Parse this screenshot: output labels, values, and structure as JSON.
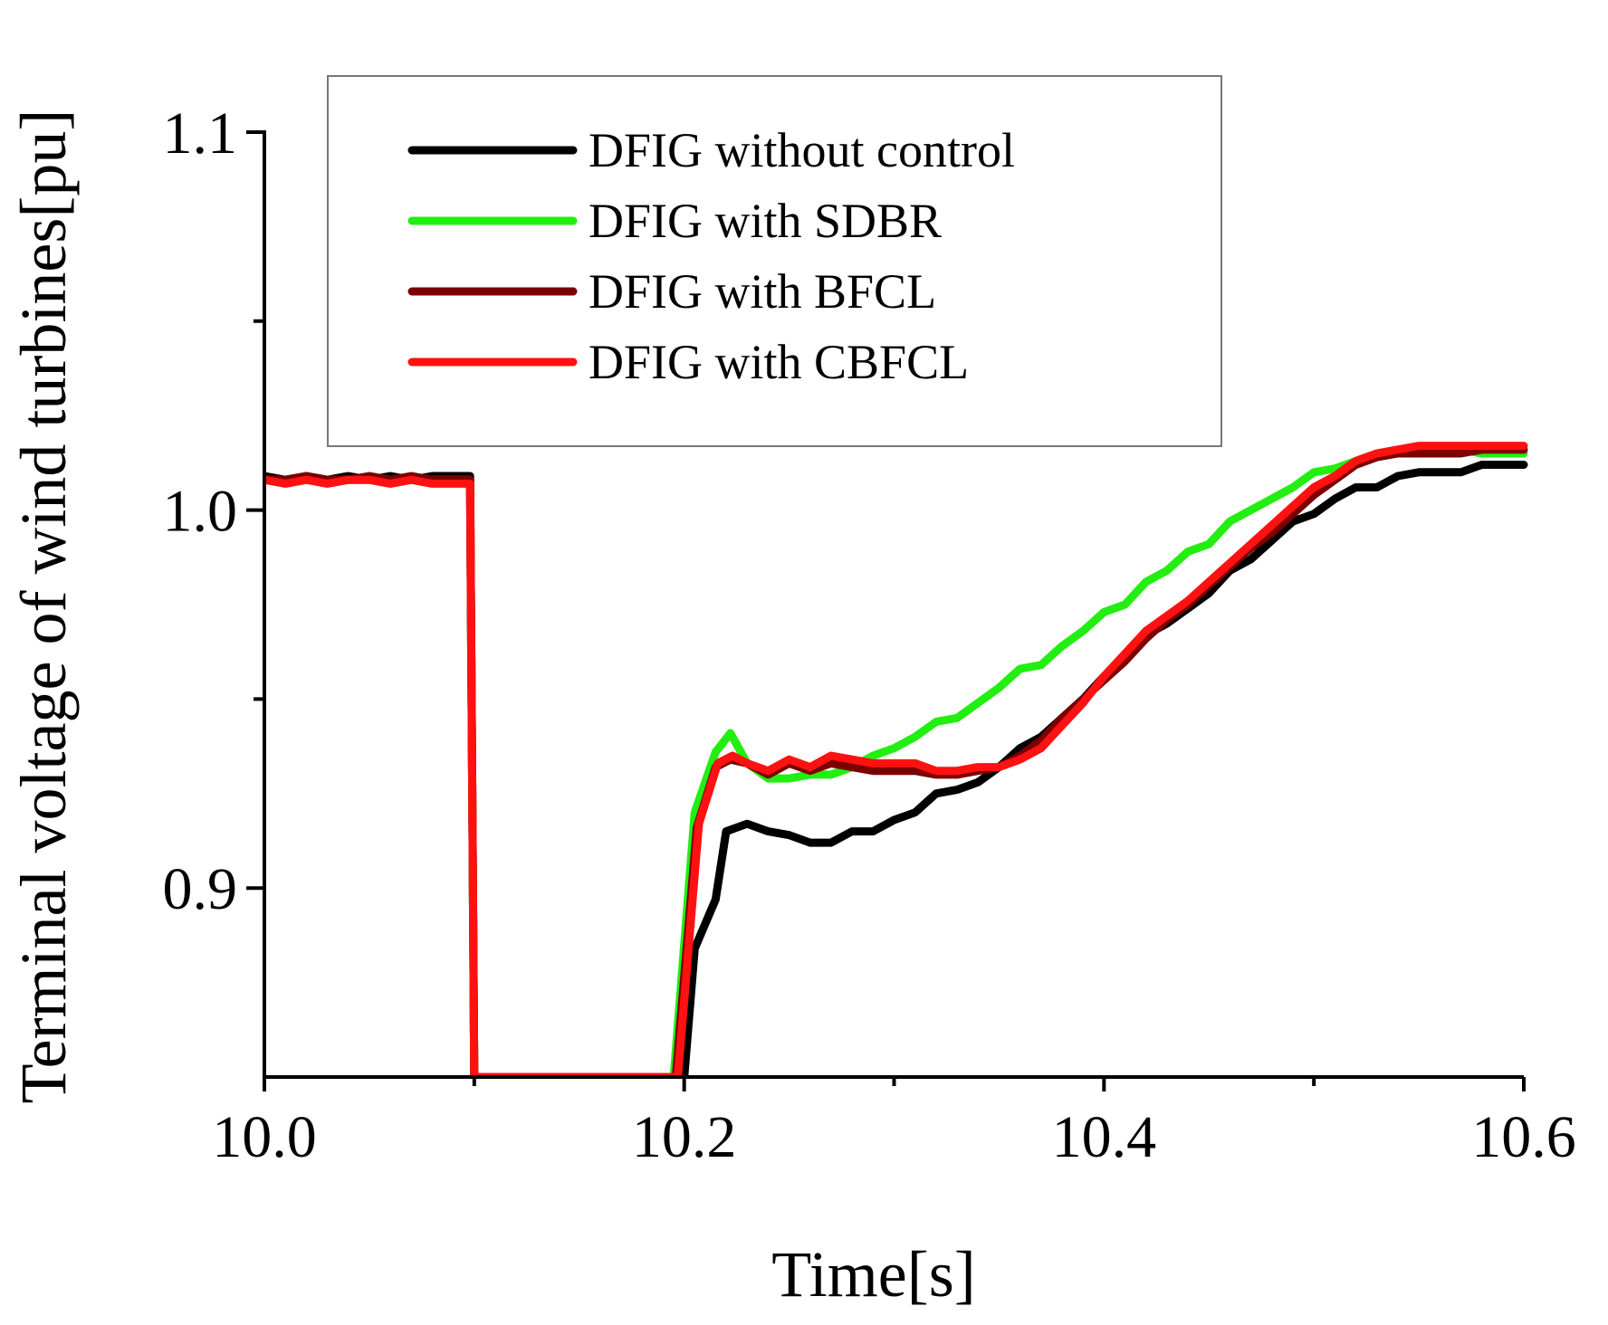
{
  "chart_data": {
    "type": "line",
    "title": "",
    "xlabel": "Time[s]",
    "ylabel": "Terminal voltage of wind turbines[pu]",
    "xlim": [
      10.0,
      10.6
    ],
    "ylim": [
      0.85,
      1.1
    ],
    "x_ticks": [
      {
        "value": 10.0,
        "label": "10.0"
      },
      {
        "value": 10.2,
        "label": "10.2"
      },
      {
        "value": 10.4,
        "label": "10.4"
      },
      {
        "value": 10.6,
        "label": "10.6"
      }
    ],
    "y_ticks": [
      {
        "value": 0.9,
        "label": "0.9"
      },
      {
        "value": 1.0,
        "label": "1.0"
      },
      {
        "value": 1.1,
        "label": "1.1"
      }
    ],
    "x_minor_ticks": [
      10.1,
      10.3,
      10.5
    ],
    "y_minor_ticks": [
      0.95,
      1.05
    ],
    "grid": false,
    "legend_position": "top-center",
    "series": [
      {
        "name": "DFIG without control",
        "color": "#000000",
        "points": [
          [
            10.0,
            1.009
          ],
          [
            10.01,
            1.008
          ],
          [
            10.02,
            1.009
          ],
          [
            10.03,
            1.008
          ],
          [
            10.04,
            1.009
          ],
          [
            10.05,
            1.008
          ],
          [
            10.06,
            1.009
          ],
          [
            10.07,
            1.008
          ],
          [
            10.08,
            1.009
          ],
          [
            10.098,
            1.009
          ],
          [
            10.1,
            0.85
          ],
          [
            10.2,
            0.85
          ],
          [
            10.205,
            0.884
          ],
          [
            10.215,
            0.897
          ],
          [
            10.22,
            0.915
          ],
          [
            10.23,
            0.917
          ],
          [
            10.24,
            0.915
          ],
          [
            10.25,
            0.914
          ],
          [
            10.26,
            0.912
          ],
          [
            10.27,
            0.912
          ],
          [
            10.28,
            0.915
          ],
          [
            10.29,
            0.915
          ],
          [
            10.3,
            0.918
          ],
          [
            10.31,
            0.92
          ],
          [
            10.32,
            0.925
          ],
          [
            10.33,
            0.926
          ],
          [
            10.34,
            0.928
          ],
          [
            10.35,
            0.932
          ],
          [
            10.36,
            0.937
          ],
          [
            10.37,
            0.94
          ],
          [
            10.38,
            0.945
          ],
          [
            10.39,
            0.95
          ],
          [
            10.4,
            0.956
          ],
          [
            10.41,
            0.961
          ],
          [
            10.42,
            0.967
          ],
          [
            10.43,
            0.97
          ],
          [
            10.44,
            0.974
          ],
          [
            10.45,
            0.978
          ],
          [
            10.46,
            0.984
          ],
          [
            10.47,
            0.987
          ],
          [
            10.48,
            0.992
          ],
          [
            10.49,
            0.997
          ],
          [
            10.5,
            0.999
          ],
          [
            10.51,
            1.003
          ],
          [
            10.52,
            1.006
          ],
          [
            10.53,
            1.006
          ],
          [
            10.54,
            1.009
          ],
          [
            10.55,
            1.01
          ],
          [
            10.56,
            1.01
          ],
          [
            10.57,
            1.01
          ],
          [
            10.58,
            1.012
          ],
          [
            10.6,
            1.012
          ]
        ]
      },
      {
        "name": "DFIG with SDBR",
        "color": "#22ee11",
        "points": [
          [
            10.0,
            1.008
          ],
          [
            10.01,
            1.008
          ],
          [
            10.02,
            1.008
          ],
          [
            10.03,
            1.008
          ],
          [
            10.04,
            1.008
          ],
          [
            10.05,
            1.008
          ],
          [
            10.06,
            1.008
          ],
          [
            10.07,
            1.008
          ],
          [
            10.08,
            1.008
          ],
          [
            10.098,
            1.008
          ],
          [
            10.1,
            0.85
          ],
          [
            10.195,
            0.85
          ],
          [
            10.205,
            0.92
          ],
          [
            10.215,
            0.936
          ],
          [
            10.222,
            0.941
          ],
          [
            10.23,
            0.933
          ],
          [
            10.24,
            0.929
          ],
          [
            10.25,
            0.929
          ],
          [
            10.26,
            0.93
          ],
          [
            10.27,
            0.93
          ],
          [
            10.28,
            0.932
          ],
          [
            10.29,
            0.935
          ],
          [
            10.3,
            0.937
          ],
          [
            10.31,
            0.94
          ],
          [
            10.32,
            0.944
          ],
          [
            10.33,
            0.945
          ],
          [
            10.34,
            0.949
          ],
          [
            10.35,
            0.953
          ],
          [
            10.36,
            0.958
          ],
          [
            10.37,
            0.959
          ],
          [
            10.38,
            0.964
          ],
          [
            10.39,
            0.968
          ],
          [
            10.4,
            0.973
          ],
          [
            10.41,
            0.975
          ],
          [
            10.42,
            0.981
          ],
          [
            10.43,
            0.984
          ],
          [
            10.44,
            0.989
          ],
          [
            10.45,
            0.991
          ],
          [
            10.46,
            0.997
          ],
          [
            10.47,
            1.0
          ],
          [
            10.48,
            1.003
          ],
          [
            10.49,
            1.006
          ],
          [
            10.5,
            1.01
          ],
          [
            10.51,
            1.011
          ],
          [
            10.52,
            1.013
          ],
          [
            10.53,
            1.015
          ],
          [
            10.54,
            1.016
          ],
          [
            10.55,
            1.016
          ],
          [
            10.56,
            1.016
          ],
          [
            10.57,
            1.016
          ],
          [
            10.58,
            1.015
          ],
          [
            10.6,
            1.015
          ]
        ]
      },
      {
        "name": "DFIG with BFCL",
        "color": "#7a0000",
        "points": [
          [
            10.0,
            1.008
          ],
          [
            10.01,
            1.008
          ],
          [
            10.02,
            1.009
          ],
          [
            10.03,
            1.008
          ],
          [
            10.04,
            1.008
          ],
          [
            10.05,
            1.009
          ],
          [
            10.06,
            1.008
          ],
          [
            10.07,
            1.009
          ],
          [
            10.08,
            1.008
          ],
          [
            10.098,
            1.008
          ],
          [
            10.1,
            0.85
          ],
          [
            10.196,
            0.85
          ],
          [
            10.206,
            0.916
          ],
          [
            10.215,
            0.932
          ],
          [
            10.222,
            0.934
          ],
          [
            10.23,
            0.933
          ],
          [
            10.24,
            0.93
          ],
          [
            10.25,
            0.933
          ],
          [
            10.26,
            0.931
          ],
          [
            10.27,
            0.933
          ],
          [
            10.28,
            0.932
          ],
          [
            10.29,
            0.931
          ],
          [
            10.3,
            0.931
          ],
          [
            10.31,
            0.931
          ],
          [
            10.32,
            0.93
          ],
          [
            10.33,
            0.93
          ],
          [
            10.34,
            0.931
          ],
          [
            10.35,
            0.932
          ],
          [
            10.36,
            0.935
          ],
          [
            10.37,
            0.939
          ],
          [
            10.38,
            0.945
          ],
          [
            10.39,
            0.95
          ],
          [
            10.4,
            0.955
          ],
          [
            10.41,
            0.96
          ],
          [
            10.42,
            0.966
          ],
          [
            10.43,
            0.971
          ],
          [
            10.44,
            0.975
          ],
          [
            10.45,
            0.98
          ],
          [
            10.46,
            0.985
          ],
          [
            10.47,
            0.99
          ],
          [
            10.48,
            0.994
          ],
          [
            10.49,
            0.999
          ],
          [
            10.5,
            1.004
          ],
          [
            10.51,
            1.008
          ],
          [
            10.52,
            1.012
          ],
          [
            10.53,
            1.014
          ],
          [
            10.54,
            1.015
          ],
          [
            10.55,
            1.015
          ],
          [
            10.56,
            1.015
          ],
          [
            10.57,
            1.015
          ],
          [
            10.58,
            1.016
          ],
          [
            10.6,
            1.016
          ]
        ]
      },
      {
        "name": "DFIG with CBFCL",
        "color": "#ff1111",
        "points": [
          [
            10.0,
            1.008
          ],
          [
            10.01,
            1.007
          ],
          [
            10.02,
            1.008
          ],
          [
            10.03,
            1.007
          ],
          [
            10.04,
            1.008
          ],
          [
            10.05,
            1.008
          ],
          [
            10.06,
            1.007
          ],
          [
            10.07,
            1.008
          ],
          [
            10.08,
            1.007
          ],
          [
            10.098,
            1.007
          ],
          [
            10.1,
            0.85
          ],
          [
            10.197,
            0.85
          ],
          [
            10.207,
            0.917
          ],
          [
            10.216,
            0.933
          ],
          [
            10.223,
            0.935
          ],
          [
            10.23,
            0.933
          ],
          [
            10.24,
            0.931
          ],
          [
            10.25,
            0.934
          ],
          [
            10.26,
            0.932
          ],
          [
            10.27,
            0.935
          ],
          [
            10.28,
            0.934
          ],
          [
            10.29,
            0.933
          ],
          [
            10.3,
            0.933
          ],
          [
            10.31,
            0.933
          ],
          [
            10.32,
            0.931
          ],
          [
            10.33,
            0.931
          ],
          [
            10.34,
            0.932
          ],
          [
            10.35,
            0.932
          ],
          [
            10.36,
            0.934
          ],
          [
            10.37,
            0.937
          ],
          [
            10.38,
            0.943
          ],
          [
            10.39,
            0.949
          ],
          [
            10.4,
            0.956
          ],
          [
            10.41,
            0.962
          ],
          [
            10.42,
            0.968
          ],
          [
            10.43,
            0.972
          ],
          [
            10.44,
            0.976
          ],
          [
            10.45,
            0.981
          ],
          [
            10.46,
            0.986
          ],
          [
            10.47,
            0.991
          ],
          [
            10.48,
            0.996
          ],
          [
            10.49,
            1.001
          ],
          [
            10.5,
            1.006
          ],
          [
            10.51,
            1.009
          ],
          [
            10.52,
            1.013
          ],
          [
            10.53,
            1.015
          ],
          [
            10.54,
            1.016
          ],
          [
            10.55,
            1.017
          ],
          [
            10.56,
            1.017
          ],
          [
            10.57,
            1.017
          ],
          [
            10.58,
            1.017
          ],
          [
            10.6,
            1.017
          ]
        ]
      }
    ]
  }
}
